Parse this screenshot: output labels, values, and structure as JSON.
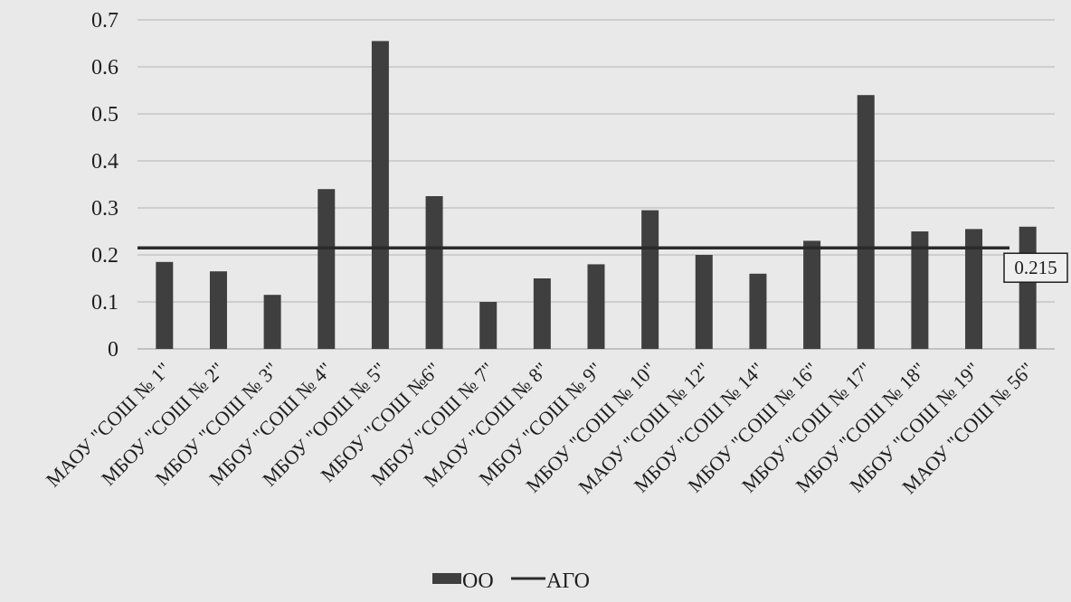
{
  "chart_data": {
    "type": "bar",
    "title": "",
    "xlabel": "",
    "ylabel": "",
    "ylim": [
      0,
      0.7
    ],
    "yticks": [
      "0",
      "0.1",
      "0.2",
      "0.3",
      "0.4",
      "0.5",
      "0.6",
      "0.7"
    ],
    "grid": true,
    "legend_position": "bottom",
    "categories": [
      "МАОУ \"СОШ № 1\"",
      "МБОУ \"СОШ № 2\"",
      "МБОУ \"СОШ № 3\"",
      "МБОУ \"СОШ № 4\"",
      "МБОУ \"ООШ № 5\"",
      "МБОУ \"СОШ №6\"",
      "МБОУ \"СОШ № 7\"",
      "МАОУ \"СОШ № 8\"",
      "МБОУ \"СОШ № 9\"",
      "МБОУ \"СОШ № 10\"",
      "МАОУ \"СОШ № 12\"",
      "МБОУ \"СОШ № 14\"",
      "МБОУ \"СОШ № 16\"",
      "МБОУ \"СОШ № 17\"",
      "МБОУ \"СОШ № 18\"",
      "МБОУ \"СОШ № 19\"",
      "МАОУ \"СОШ № 56\""
    ],
    "series": [
      {
        "name": "ОО",
        "kind": "bar",
        "color": "#3f3f3f",
        "values": [
          0.185,
          0.165,
          0.115,
          0.34,
          0.655,
          0.325,
          0.1,
          0.15,
          0.18,
          0.295,
          0.2,
          0.16,
          0.23,
          0.54,
          0.25,
          0.255,
          0.26
        ]
      },
      {
        "name": "АГО",
        "kind": "line",
        "color": "#2a2a2a",
        "value": 0.215,
        "label": "0.215"
      }
    ]
  }
}
